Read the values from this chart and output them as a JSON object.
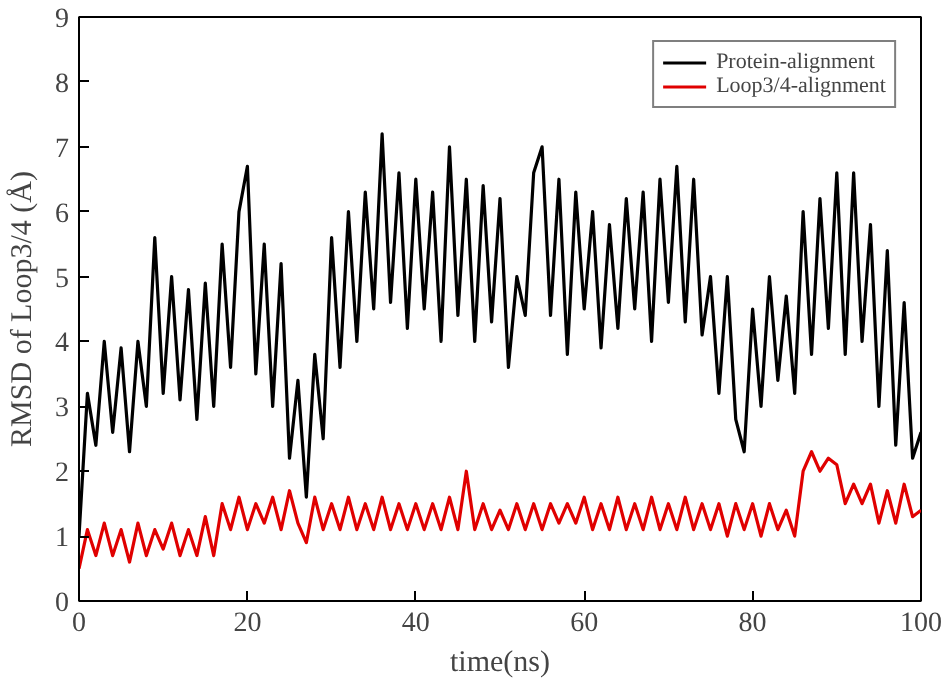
{
  "chart_data": {
    "type": "line",
    "xlabel": "time(ns)",
    "ylabel": "RMSD of Loop3/4 (Å)",
    "xlim": [
      0,
      100
    ],
    "ylim": [
      0,
      9
    ],
    "xticks": [
      0,
      20,
      40,
      60,
      80,
      100
    ],
    "yticks": [
      0,
      1,
      2,
      3,
      4,
      5,
      6,
      7,
      8,
      9
    ],
    "grid": false,
    "legend": "top right",
    "line_style": "solid",
    "x": [
      0,
      1,
      2,
      3,
      4,
      5,
      6,
      7,
      8,
      9,
      10,
      11,
      12,
      13,
      14,
      15,
      16,
      17,
      18,
      19,
      20,
      21,
      22,
      23,
      24,
      25,
      26,
      27,
      28,
      29,
      30,
      31,
      32,
      33,
      34,
      35,
      36,
      37,
      38,
      39,
      40,
      41,
      42,
      43,
      44,
      45,
      46,
      47,
      48,
      49,
      50,
      51,
      52,
      53,
      54,
      55,
      56,
      57,
      58,
      59,
      60,
      61,
      62,
      63,
      64,
      65,
      66,
      67,
      68,
      69,
      70,
      71,
      72,
      73,
      74,
      75,
      76,
      77,
      78,
      79,
      80,
      81,
      82,
      83,
      84,
      85,
      86,
      87,
      88,
      89,
      90,
      91,
      92,
      93,
      94,
      95,
      96,
      97,
      98,
      99,
      100
    ],
    "series": [
      {
        "name": "Protein-alignment",
        "color": "#000000",
        "values": [
          1.0,
          3.2,
          2.4,
          4.0,
          2.6,
          3.9,
          2.3,
          4.0,
          3.0,
          5.6,
          3.2,
          5.0,
          3.1,
          4.8,
          2.8,
          4.9,
          3.0,
          5.5,
          3.6,
          6.0,
          6.7,
          3.5,
          5.5,
          3.0,
          5.2,
          2.2,
          3.4,
          1.6,
          3.8,
          2.5,
          5.6,
          3.6,
          6.0,
          4.0,
          6.3,
          4.5,
          7.2,
          4.6,
          6.6,
          4.2,
          6.5,
          4.5,
          6.3,
          4.0,
          7.0,
          4.4,
          6.5,
          4.0,
          6.4,
          4.3,
          6.2,
          3.6,
          5.0,
          4.4,
          6.6,
          7.0,
          4.4,
          6.5,
          3.8,
          6.3,
          4.5,
          6.0,
          3.9,
          5.8,
          4.2,
          6.2,
          4.5,
          6.3,
          4.0,
          6.5,
          4.6,
          6.7,
          4.3,
          6.5,
          4.1,
          5.0,
          3.2,
          5.0,
          2.8,
          2.3,
          4.5,
          3.0,
          5.0,
          3.4,
          4.7,
          3.2,
          6.0,
          3.8,
          6.2,
          4.2,
          6.6,
          3.8,
          6.6,
          4.0,
          5.8,
          3.0,
          5.4,
          2.4,
          4.6,
          2.2,
          2.6
        ]
      },
      {
        "name": "Loop3/4-alignment",
        "color": "#e00000",
        "values": [
          0.5,
          1.1,
          0.7,
          1.2,
          0.7,
          1.1,
          0.6,
          1.2,
          0.7,
          1.1,
          0.8,
          1.2,
          0.7,
          1.1,
          0.7,
          1.3,
          0.7,
          1.5,
          1.1,
          1.6,
          1.1,
          1.5,
          1.2,
          1.6,
          1.1,
          1.7,
          1.2,
          0.9,
          1.6,
          1.1,
          1.5,
          1.1,
          1.6,
          1.1,
          1.5,
          1.1,
          1.6,
          1.1,
          1.5,
          1.1,
          1.5,
          1.1,
          1.5,
          1.1,
          1.6,
          1.1,
          2.0,
          1.1,
          1.5,
          1.1,
          1.4,
          1.1,
          1.5,
          1.1,
          1.5,
          1.1,
          1.5,
          1.2,
          1.5,
          1.2,
          1.6,
          1.1,
          1.5,
          1.1,
          1.6,
          1.1,
          1.5,
          1.1,
          1.6,
          1.1,
          1.5,
          1.1,
          1.6,
          1.1,
          1.5,
          1.1,
          1.5,
          1.0,
          1.5,
          1.1,
          1.5,
          1.0,
          1.5,
          1.1,
          1.4,
          1.0,
          2.0,
          2.3,
          2.0,
          2.2,
          2.1,
          1.5,
          1.8,
          1.5,
          1.8,
          1.2,
          1.7,
          1.2,
          1.8,
          1.3,
          1.4
        ]
      }
    ]
  }
}
